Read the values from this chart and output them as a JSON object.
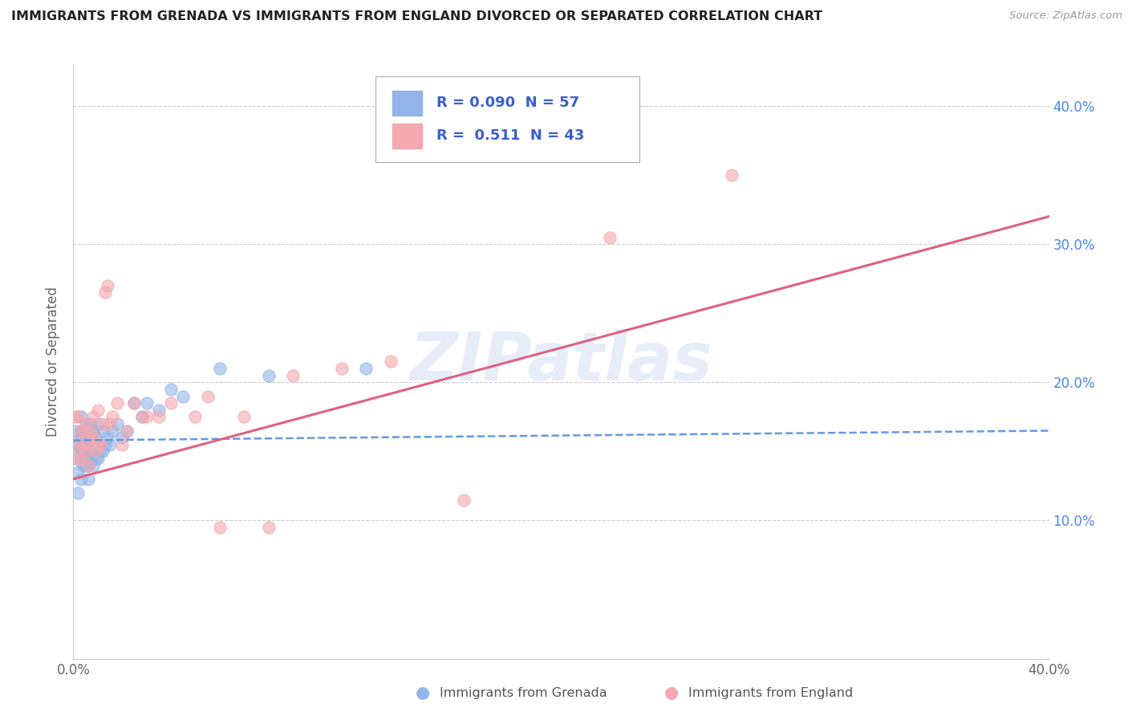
{
  "title": "IMMIGRANTS FROM GRENADA VS IMMIGRANTS FROM ENGLAND DIVORCED OR SEPARATED CORRELATION CHART",
  "source": "Source: ZipAtlas.com",
  "ylabel": "Divorced or Separated",
  "color_grenada": "#92b4e8",
  "color_england": "#f4a8b0",
  "color_trendline_grenada": "#6699dd",
  "color_trendline_england": "#e06080",
  "color_blue_text": "#3a5fcd",
  "watermark": "ZIPatlas",
  "xlim": [
    0.0,
    0.4
  ],
  "ylim": [
    0.0,
    0.43
  ],
  "grenada_scatter_x": [
    0.001,
    0.001,
    0.001,
    0.002,
    0.002,
    0.002,
    0.003,
    0.003,
    0.003,
    0.003,
    0.003,
    0.003,
    0.004,
    0.004,
    0.004,
    0.004,
    0.005,
    0.005,
    0.005,
    0.005,
    0.005,
    0.006,
    0.006,
    0.006,
    0.006,
    0.006,
    0.007,
    0.007,
    0.007,
    0.007,
    0.008,
    0.008,
    0.008,
    0.009,
    0.009,
    0.01,
    0.01,
    0.01,
    0.011,
    0.012,
    0.012,
    0.013,
    0.014,
    0.015,
    0.016,
    0.018,
    0.02,
    0.022,
    0.025,
    0.028,
    0.03,
    0.035,
    0.04,
    0.045,
    0.06,
    0.08,
    0.12
  ],
  "grenada_scatter_y": [
    0.145,
    0.155,
    0.165,
    0.12,
    0.135,
    0.155,
    0.13,
    0.145,
    0.15,
    0.16,
    0.165,
    0.175,
    0.14,
    0.15,
    0.155,
    0.165,
    0.14,
    0.145,
    0.155,
    0.16,
    0.17,
    0.13,
    0.14,
    0.15,
    0.155,
    0.165,
    0.145,
    0.15,
    0.16,
    0.17,
    0.14,
    0.15,
    0.165,
    0.145,
    0.16,
    0.145,
    0.155,
    0.17,
    0.15,
    0.15,
    0.165,
    0.155,
    0.16,
    0.155,
    0.165,
    0.17,
    0.16,
    0.165,
    0.185,
    0.175,
    0.185,
    0.18,
    0.195,
    0.19,
    0.21,
    0.205,
    0.21
  ],
  "england_scatter_x": [
    0.001,
    0.001,
    0.002,
    0.002,
    0.003,
    0.003,
    0.004,
    0.004,
    0.005,
    0.005,
    0.006,
    0.006,
    0.007,
    0.008,
    0.008,
    0.009,
    0.01,
    0.01,
    0.011,
    0.012,
    0.013,
    0.014,
    0.015,
    0.016,
    0.018,
    0.02,
    0.022,
    0.025,
    0.028,
    0.03,
    0.035,
    0.04,
    0.05,
    0.055,
    0.06,
    0.07,
    0.08,
    0.09,
    0.11,
    0.13,
    0.16,
    0.22,
    0.27
  ],
  "england_scatter_y": [
    0.155,
    0.175,
    0.145,
    0.175,
    0.145,
    0.165,
    0.155,
    0.165,
    0.15,
    0.17,
    0.14,
    0.155,
    0.165,
    0.16,
    0.175,
    0.15,
    0.155,
    0.18,
    0.155,
    0.17,
    0.265,
    0.27,
    0.17,
    0.175,
    0.185,
    0.155,
    0.165,
    0.185,
    0.175,
    0.175,
    0.175,
    0.185,
    0.175,
    0.19,
    0.095,
    0.175,
    0.095,
    0.205,
    0.21,
    0.215,
    0.115,
    0.305,
    0.35
  ],
  "grenada_trend": [
    0.158,
    0.165
  ],
  "england_trend": [
    0.13,
    0.32
  ],
  "y_ticks": [
    0.1,
    0.2,
    0.3,
    0.4
  ],
  "y_tick_labels": [
    "10.0%",
    "20.0%",
    "30.0%",
    "40.0%"
  ]
}
